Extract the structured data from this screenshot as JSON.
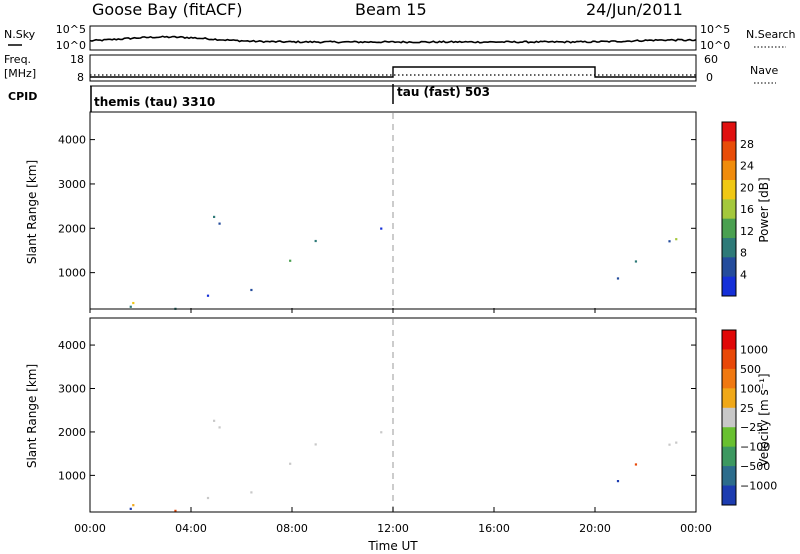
{
  "header": {
    "station": "Goose Bay (fitACF)",
    "beam": "Beam 15",
    "date": "24/Jun/2011"
  },
  "noise_panel": {
    "left_label": "N.Sky",
    "right_label": "N.Search",
    "left_ticks": [
      "10^5",
      "10^0"
    ],
    "right_ticks": [
      "10^5",
      "10^0"
    ]
  },
  "freq_panel": {
    "left_label_1": "Freq.",
    "left_label_2": "[MHz]",
    "right_label": "Nave",
    "left_ticks": [
      "18",
      "8"
    ],
    "right_ticks": [
      "60",
      "0"
    ]
  },
  "cpid_panel": {
    "label": "CPID",
    "segments": [
      {
        "name": "themis (tau) 3310",
        "start_hour": 0,
        "end_hour": 12
      },
      {
        "name": "tau (fast) 503",
        "start_hour": 12,
        "end_hour": 24
      }
    ]
  },
  "power_panel": {
    "ylabel": "Slant Range [km]",
    "yticks": [
      "4000",
      "3000",
      "2000",
      "1000"
    ],
    "colorbar_label": "Power [dB]",
    "colorbar_ticks": [
      "28",
      "24",
      "20",
      "16",
      "12",
      "8",
      "4"
    ]
  },
  "velocity_panel": {
    "ylabel": "Slant Range [km]",
    "yticks": [
      "4000",
      "3000",
      "2000",
      "1000"
    ],
    "colorbar_label": "Velocity [m s⁻¹]",
    "colorbar_ticks": [
      "1000",
      "500",
      "100",
      "25",
      "−25",
      "−100",
      "−500",
      "−1000"
    ]
  },
  "xaxis": {
    "label": "Time UT",
    "ticks": [
      "00:00",
      "04:00",
      "08:00",
      "12:00",
      "16:00",
      "20:00",
      "00:00"
    ]
  },
  "chart_data": {
    "type": "heatmap",
    "title": "Goose Bay (fitACF) Beam 15 24/Jun/2011",
    "xlabel": "Time UT",
    "ylabel": "Slant Range [km]",
    "xlim_hours": [
      0,
      24
    ],
    "ylim_km": [
      180,
      4600
    ],
    "marker_line_hour": 12,
    "nave_series": {
      "low_value": 10,
      "high_value": 35,
      "high_start_hour": 12,
      "high_end_hour": 20
    },
    "power_colors": [
      "#1530d8",
      "#244c9c",
      "#2e7a78",
      "#4aa050",
      "#a4c83c",
      "#f0c814",
      "#f08c0c",
      "#e84c08",
      "#e01010"
    ],
    "velocity_colors": [
      "#1c3cb0",
      "#2c6c8c",
      "#3c9860",
      "#68c030",
      "#c8c8c8",
      "#f0a818",
      "#f07810",
      "#e84808",
      "#e00808"
    ],
    "echo_regions": [
      {
        "t0": 1.5,
        "t1": 6.5,
        "r0": 1900,
        "r1": 2700,
        "power": "high",
        "velocity": "low"
      },
      {
        "t0": 3.0,
        "t1": 8.0,
        "r0": 500,
        "r1": 1500,
        "power": "high",
        "velocity": "low"
      },
      {
        "t0": 8.5,
        "t1": 11.8,
        "r0": 1600,
        "r1": 2500,
        "power": "medium",
        "velocity": "low"
      },
      {
        "t0": 19.8,
        "t1": 23.8,
        "r0": 1200,
        "r1": 2600,
        "power": "high",
        "velocity": "low"
      },
      {
        "t0": 0.2,
        "t1": 17.5,
        "r0": 180,
        "r1": 450,
        "power": "mixed",
        "velocity": "mixed"
      },
      {
        "t0": 20.5,
        "t1": 24.0,
        "r0": 700,
        "r1": 1100,
        "power": "low",
        "velocity": "mixed"
      }
    ]
  }
}
